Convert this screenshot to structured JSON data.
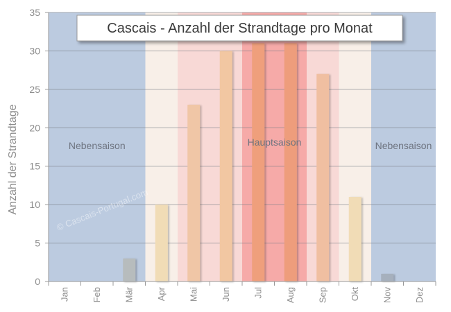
{
  "chart_data": {
    "type": "bar",
    "title": "Cascais - Anzahl der Strandtage pro Monat",
    "xlabel": "",
    "ylabel": "Anzahl der Strandtage",
    "categories": [
      "Jan",
      "Feb",
      "Mär",
      "Apr",
      "Mai",
      "Jun",
      "Jul",
      "Aug",
      "Sep",
      "Okt",
      "Nov",
      "Dez"
    ],
    "values": [
      0,
      0,
      3,
      10,
      23,
      30,
      31,
      31,
      27,
      11,
      1,
      0
    ],
    "ylim": [
      0,
      35
    ],
    "yticks": [
      0,
      5,
      10,
      15,
      20,
      25,
      30,
      35
    ],
    "grid": true,
    "bar_colors": [
      "#b9c0c8",
      "#b9c0c8",
      "#b7bcbd",
      "#f1dcb6",
      "#f0c6a6",
      "#f2c7a2",
      "#ef9f7c",
      "#ee9d7b",
      "#f0bfa1",
      "#f1dcb6",
      "#a6b0bd",
      "#b9c0c8"
    ],
    "season_bands": [
      {
        "label": "Nebensaison",
        "from_month": 1,
        "to_month": 3,
        "color": "#bccbe0"
      },
      {
        "label": "",
        "from_month": 4,
        "to_month": 4,
        "color": "#f8efe8"
      },
      {
        "label": "",
        "from_month": 5,
        "to_month": 6,
        "color": "#f8d9d6"
      },
      {
        "label": "Hauptsaison",
        "from_month": 7,
        "to_month": 8,
        "color": "#f6aaa8"
      },
      {
        "label": "",
        "from_month": 9,
        "to_month": 9,
        "color": "#f8d9d6"
      },
      {
        "label": "",
        "from_month": 10,
        "to_month": 10,
        "color": "#f8efe8"
      },
      {
        "label": "Nebensaison",
        "from_month": 11,
        "to_month": 12,
        "color": "#bccbe0"
      }
    ],
    "annotations": [
      "© Cascais-Portugal.com"
    ],
    "legend": "none"
  }
}
